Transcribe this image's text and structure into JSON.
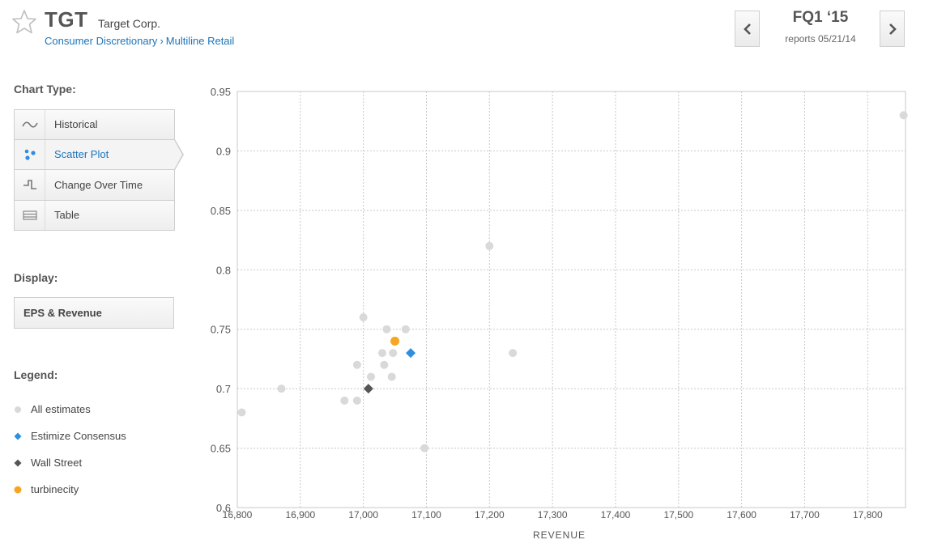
{
  "header": {
    "ticker": "TGT",
    "company": "Target Corp.",
    "breadcrumb": {
      "sector": "Consumer Discretionary",
      "separator": "›",
      "industry": "Multiline Retail"
    },
    "star_icon": "star-outline-icon"
  },
  "period_nav": {
    "quarter": "FQ1 ‘15",
    "report_date": "reports 05/21/14",
    "prev_icon": "chevron-left-icon",
    "next_icon": "chevron-right-icon"
  },
  "sidebar": {
    "chart_type_title": "Chart Type:",
    "chart_types": [
      {
        "label": "Historical",
        "icon": "wave-icon",
        "active": false
      },
      {
        "label": "Scatter Plot",
        "icon": "scatter-icon",
        "active": true
      },
      {
        "label": "Change Over Time",
        "icon": "step-icon",
        "active": false
      },
      {
        "label": "Table",
        "icon": "table-icon",
        "active": false
      }
    ],
    "display_title": "Display:",
    "display_value": "EPS & Revenue",
    "legend_title": "Legend:",
    "legend": [
      {
        "label": "All estimates",
        "marker": "circle",
        "color": "#d9d9d9"
      },
      {
        "label": "Estimize Consensus",
        "marker": "diamond",
        "color": "#2e8ee0"
      },
      {
        "label": "Wall Street",
        "marker": "diamond",
        "color": "#555555"
      },
      {
        "label": "turbinecity",
        "marker": "circle",
        "color": "#f5a623"
      }
    ]
  },
  "colors": {
    "accent": "#1a75bb",
    "estimate": "#d9d9d9",
    "consensus": "#2e8ee0",
    "wall_street": "#555555",
    "user": "#f5a623",
    "grid": "#c8c8c8"
  },
  "chart_data": {
    "type": "scatter",
    "xlabel": "REVENUE",
    "ylabel": "",
    "xlim": [
      16800,
      17860
    ],
    "ylim": [
      0.6,
      0.95
    ],
    "x_ticks": [
      16800,
      16900,
      17000,
      17100,
      17200,
      17300,
      17400,
      17500,
      17600,
      17700,
      17800
    ],
    "x_tick_labels": [
      "16,800",
      "16,900",
      "17,000",
      "17,100",
      "17,200",
      "17,300",
      "17,400",
      "17,500",
      "17,600",
      "17,700",
      "17,800"
    ],
    "y_ticks": [
      0.6,
      0.65,
      0.7,
      0.75,
      0.8,
      0.85,
      0.9,
      0.95
    ],
    "y_tick_labels": [
      "0.6",
      "0.65",
      "0.7",
      "0.75",
      "0.8",
      "0.85",
      "0.9",
      "0.95"
    ],
    "grid": true,
    "series": [
      {
        "name": "All estimates",
        "marker": "circle",
        "points": [
          {
            "x": 16807,
            "y": 0.68
          },
          {
            "x": 16870,
            "y": 0.7
          },
          {
            "x": 16970,
            "y": 0.69
          },
          {
            "x": 16990,
            "y": 0.69
          },
          {
            "x": 16990,
            "y": 0.72
          },
          {
            "x": 17000,
            "y": 0.76
          },
          {
            "x": 17012,
            "y": 0.71
          },
          {
            "x": 17030,
            "y": 0.73
          },
          {
            "x": 17033,
            "y": 0.72
          },
          {
            "x": 17037,
            "y": 0.75
          },
          {
            "x": 17045,
            "y": 0.71
          },
          {
            "x": 17047,
            "y": 0.73
          },
          {
            "x": 17067,
            "y": 0.75
          },
          {
            "x": 17097,
            "y": 0.65
          },
          {
            "x": 17200,
            "y": 0.82
          },
          {
            "x": 17237,
            "y": 0.73
          },
          {
            "x": 17857,
            "y": 0.93
          }
        ]
      },
      {
        "name": "Estimize Consensus",
        "marker": "diamond",
        "points": [
          {
            "x": 17075,
            "y": 0.73
          }
        ]
      },
      {
        "name": "Wall Street",
        "marker": "diamond",
        "points": [
          {
            "x": 17008,
            "y": 0.7
          }
        ]
      },
      {
        "name": "turbinecity",
        "marker": "circle",
        "points": [
          {
            "x": 17050,
            "y": 0.74
          }
        ]
      }
    ]
  }
}
